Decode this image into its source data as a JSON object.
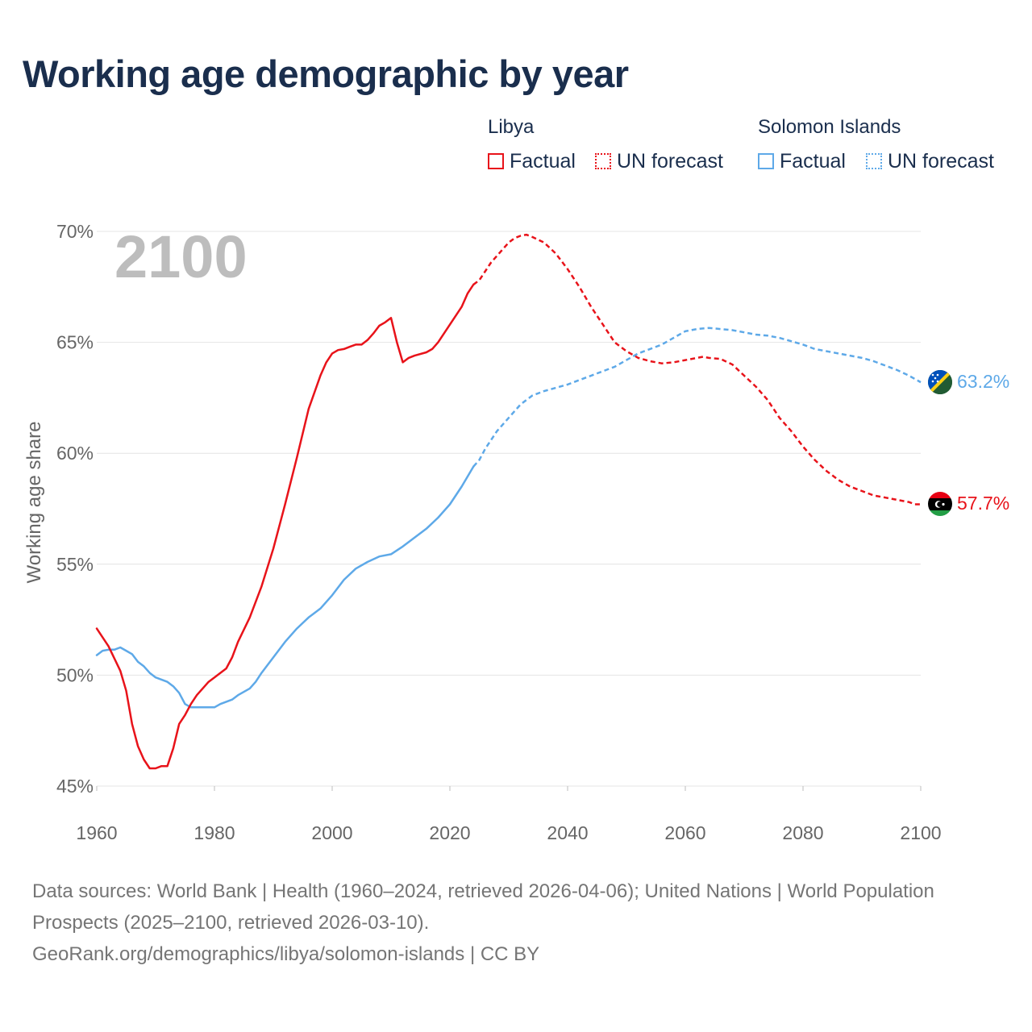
{
  "title": "Working age demographic by year",
  "legend": {
    "groups": [
      {
        "name": "Libya",
        "factual_label": "Factual",
        "forecast_label": "UN forecast",
        "color": "#e8131a"
      },
      {
        "name": "Solomon Islands",
        "factual_label": "Factual",
        "forecast_label": "UN forecast",
        "color": "#5ea9e8"
      }
    ]
  },
  "year_watermark": "2100",
  "footer": {
    "sources": "Data sources: World Bank | Health (1960–2024, retrieved 2026-04-06); United Nations | World Population Prospects (2025–2100, retrieved 2026-03-10).",
    "attribution": "GeoRank.org/demographics/libya/solomon-islands | CC BY"
  },
  "chart_data": {
    "type": "line",
    "title": "Working age demographic by year",
    "xlabel": "",
    "ylabel": "Working age share",
    "xlim": [
      1960,
      2100
    ],
    "ylim": [
      45,
      70
    ],
    "x_ticks": [
      1960,
      1980,
      2000,
      2020,
      2040,
      2060,
      2080,
      2100
    ],
    "y_ticks": [
      45,
      50,
      55,
      60,
      65,
      70
    ],
    "y_tick_labels": [
      "45%",
      "50%",
      "55%",
      "60%",
      "65%",
      "70%"
    ],
    "factual_until": 2024,
    "grid": true,
    "series": [
      {
        "name": "Libya",
        "color": "#e8131a",
        "end_label": "57.7%",
        "points": [
          [
            1960,
            52.1
          ],
          [
            1962,
            51.3
          ],
          [
            1964,
            50.2
          ],
          [
            1965,
            49.3
          ],
          [
            1966,
            47.8
          ],
          [
            1967,
            46.8
          ],
          [
            1968,
            46.2
          ],
          [
            1969,
            45.8
          ],
          [
            1970,
            45.8
          ],
          [
            1971,
            45.9
          ],
          [
            1972,
            45.9
          ],
          [
            1973,
            46.7
          ],
          [
            1974,
            47.8
          ],
          [
            1975,
            48.2
          ],
          [
            1976,
            48.7
          ],
          [
            1977,
            49.1
          ],
          [
            1978,
            49.4
          ],
          [
            1979,
            49.7
          ],
          [
            1980,
            49.9
          ],
          [
            1982,
            50.3
          ],
          [
            1983,
            50.8
          ],
          [
            1984,
            51.5
          ],
          [
            1986,
            52.6
          ],
          [
            1988,
            54.0
          ],
          [
            1990,
            55.7
          ],
          [
            1992,
            57.7
          ],
          [
            1994,
            59.8
          ],
          [
            1996,
            62.0
          ],
          [
            1998,
            63.5
          ],
          [
            1999,
            64.1
          ],
          [
            2000,
            64.5
          ],
          [
            2001,
            64.65
          ],
          [
            2002,
            64.7
          ],
          [
            2003,
            64.8
          ],
          [
            2004,
            64.9
          ],
          [
            2005,
            64.9
          ],
          [
            2006,
            65.1
          ],
          [
            2007,
            65.4
          ],
          [
            2008,
            65.75
          ],
          [
            2009,
            65.9
          ],
          [
            2010,
            66.1
          ],
          [
            2011,
            65.0
          ],
          [
            2012,
            64.1
          ],
          [
            2013,
            64.3
          ],
          [
            2014,
            64.4
          ],
          [
            2016,
            64.55
          ],
          [
            2017,
            64.7
          ],
          [
            2018,
            65.0
          ],
          [
            2020,
            65.8
          ],
          [
            2022,
            66.6
          ],
          [
            2023,
            67.2
          ],
          [
            2024,
            67.6
          ],
          [
            2025,
            67.8
          ],
          [
            2026,
            68.2
          ],
          [
            2027,
            68.6
          ],
          [
            2028,
            68.9
          ],
          [
            2029,
            69.2
          ],
          [
            2030,
            69.5
          ],
          [
            2031,
            69.7
          ],
          [
            2032,
            69.8
          ],
          [
            2033,
            69.85
          ],
          [
            2034,
            69.75
          ],
          [
            2036,
            69.5
          ],
          [
            2038,
            69.0
          ],
          [
            2040,
            68.3
          ],
          [
            2042,
            67.5
          ],
          [
            2044,
            66.6
          ],
          [
            2046,
            65.8
          ],
          [
            2048,
            65.0
          ],
          [
            2050,
            64.6
          ],
          [
            2052,
            64.3
          ],
          [
            2054,
            64.15
          ],
          [
            2056,
            64.05
          ],
          [
            2058,
            64.1
          ],
          [
            2060,
            64.2
          ],
          [
            2062,
            64.3
          ],
          [
            2063,
            64.35
          ],
          [
            2064,
            64.3
          ],
          [
            2066,
            64.25
          ],
          [
            2068,
            64.0
          ],
          [
            2070,
            63.5
          ],
          [
            2072,
            63.0
          ],
          [
            2074,
            62.4
          ],
          [
            2076,
            61.6
          ],
          [
            2078,
            61.0
          ],
          [
            2080,
            60.3
          ],
          [
            2082,
            59.7
          ],
          [
            2084,
            59.2
          ],
          [
            2086,
            58.8
          ],
          [
            2088,
            58.5
          ],
          [
            2090,
            58.3
          ],
          [
            2092,
            58.1
          ],
          [
            2094,
            58.0
          ],
          [
            2096,
            57.9
          ],
          [
            2098,
            57.8
          ],
          [
            2099,
            57.7
          ],
          [
            2100,
            57.7
          ]
        ]
      },
      {
        "name": "Solomon Islands",
        "color": "#5ea9e8",
        "end_label": "63.2%",
        "points": [
          [
            1960,
            50.9
          ],
          [
            1961,
            51.1
          ],
          [
            1962,
            51.15
          ],
          [
            1963,
            51.15
          ],
          [
            1964,
            51.25
          ],
          [
            1965,
            51.1
          ],
          [
            1966,
            50.95
          ],
          [
            1967,
            50.6
          ],
          [
            1968,
            50.4
          ],
          [
            1969,
            50.1
          ],
          [
            1970,
            49.9
          ],
          [
            1971,
            49.8
          ],
          [
            1972,
            49.7
          ],
          [
            1973,
            49.5
          ],
          [
            1974,
            49.2
          ],
          [
            1975,
            48.7
          ],
          [
            1976,
            48.55
          ],
          [
            1977,
            48.55
          ],
          [
            1978,
            48.55
          ],
          [
            1979,
            48.55
          ],
          [
            1980,
            48.55
          ],
          [
            1981,
            48.7
          ],
          [
            1982,
            48.8
          ],
          [
            1983,
            48.9
          ],
          [
            1984,
            49.1
          ],
          [
            1986,
            49.4
          ],
          [
            1987,
            49.7
          ],
          [
            1988,
            50.1
          ],
          [
            1990,
            50.8
          ],
          [
            1992,
            51.5
          ],
          [
            1994,
            52.1
          ],
          [
            1996,
            52.6
          ],
          [
            1998,
            53.0
          ],
          [
            2000,
            53.6
          ],
          [
            2002,
            54.3
          ],
          [
            2004,
            54.8
          ],
          [
            2006,
            55.1
          ],
          [
            2008,
            55.35
          ],
          [
            2010,
            55.45
          ],
          [
            2012,
            55.8
          ],
          [
            2014,
            56.2
          ],
          [
            2016,
            56.6
          ],
          [
            2018,
            57.1
          ],
          [
            2020,
            57.7
          ],
          [
            2022,
            58.5
          ],
          [
            2024,
            59.4
          ],
          [
            2025,
            59.7
          ],
          [
            2026,
            60.2
          ],
          [
            2028,
            61.0
          ],
          [
            2030,
            61.6
          ],
          [
            2032,
            62.2
          ],
          [
            2034,
            62.6
          ],
          [
            2036,
            62.8
          ],
          [
            2038,
            62.95
          ],
          [
            2040,
            63.1
          ],
          [
            2042,
            63.3
          ],
          [
            2044,
            63.5
          ],
          [
            2046,
            63.7
          ],
          [
            2048,
            63.9
          ],
          [
            2050,
            64.2
          ],
          [
            2052,
            64.5
          ],
          [
            2054,
            64.7
          ],
          [
            2056,
            64.9
          ],
          [
            2058,
            65.2
          ],
          [
            2060,
            65.5
          ],
          [
            2062,
            65.6
          ],
          [
            2064,
            65.65
          ],
          [
            2066,
            65.6
          ],
          [
            2068,
            65.55
          ],
          [
            2070,
            65.45
          ],
          [
            2072,
            65.35
          ],
          [
            2074,
            65.3
          ],
          [
            2076,
            65.2
          ],
          [
            2078,
            65.05
          ],
          [
            2080,
            64.9
          ],
          [
            2082,
            64.7
          ],
          [
            2084,
            64.6
          ],
          [
            2086,
            64.5
          ],
          [
            2088,
            64.4
          ],
          [
            2090,
            64.3
          ],
          [
            2092,
            64.15
          ],
          [
            2094,
            63.95
          ],
          [
            2096,
            63.75
          ],
          [
            2098,
            63.5
          ],
          [
            2100,
            63.2
          ]
        ]
      }
    ]
  }
}
